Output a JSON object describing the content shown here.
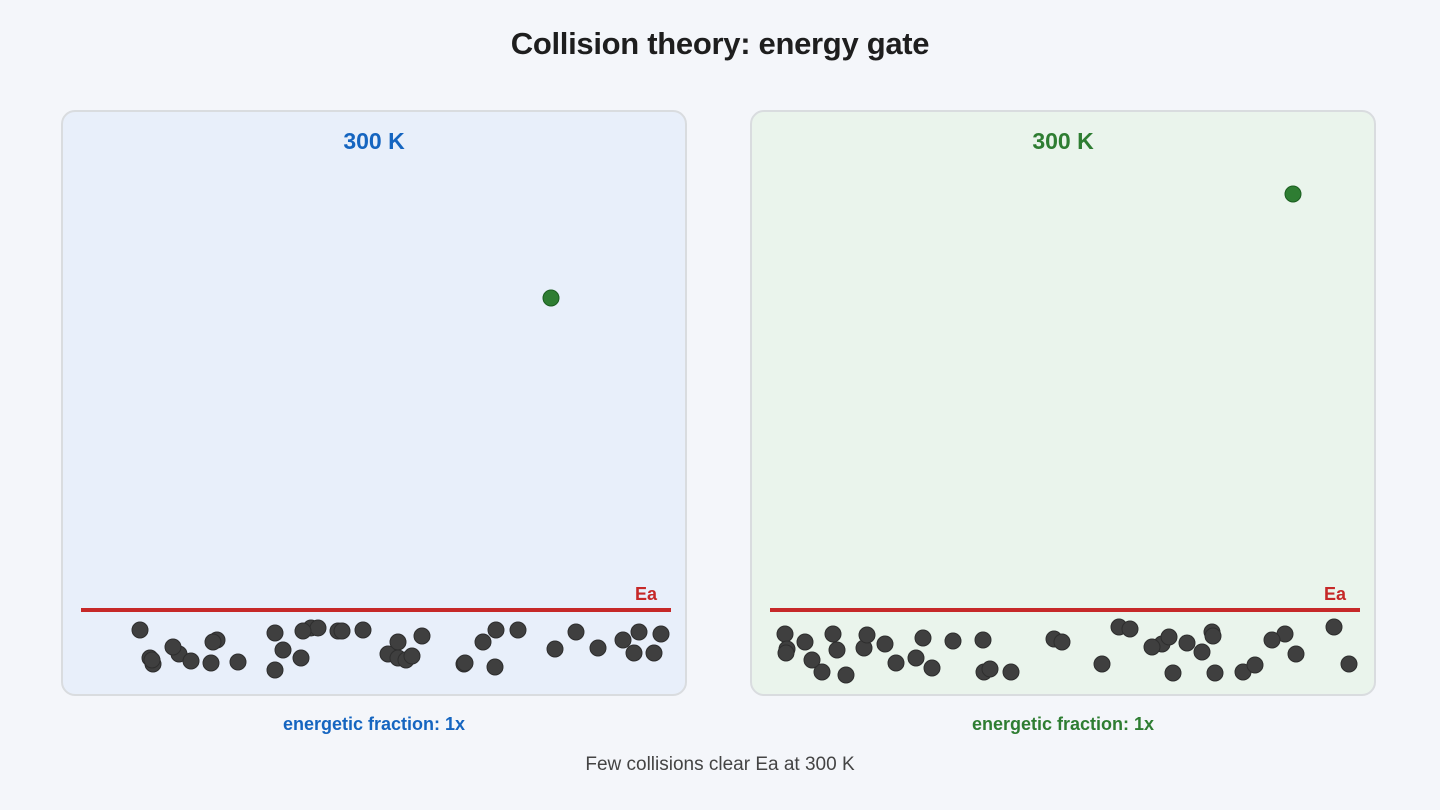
{
  "title": "Collision theory: energy gate",
  "colors": {
    "background": "#f4f6fa",
    "ea_line": "#c62828",
    "low_energy_particle": "#3f3f3f",
    "high_energy_particle": "#2e7d32"
  },
  "panels": [
    {
      "title": "300 K",
      "accent": "#1565c0",
      "background": "#e8effa",
      "ea_label": "Ea",
      "fraction_text": "energetic fraction: 1x",
      "high_energy_count": 1,
      "low_energy_count": 41
    },
    {
      "title": "300 K",
      "accent": "#2e7d32",
      "background": "#eaf4ec",
      "ea_label": "Ea",
      "fraction_text": "energetic fraction: 1x",
      "high_energy_count": 1,
      "low_energy_count": 42
    }
  ],
  "caption": "Few collisions clear Ea at 300 K"
}
